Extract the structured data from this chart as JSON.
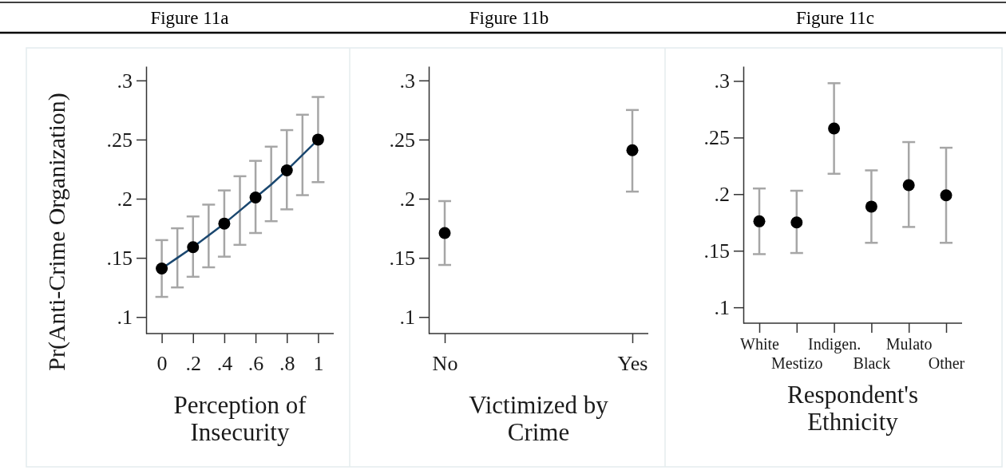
{
  "chart_data": [
    {
      "type": "line",
      "title": "Figure 11a",
      "ylabel": "Pr(Anti-Crime Organization)",
      "xlabel": "Perception of Insecurity",
      "xlim": [
        -0.1,
        1.1
      ],
      "xticks": [
        0,
        {
          "value": 0.2,
          "label": ".2"
        },
        {
          "value": 0.4,
          "label": ".4"
        },
        {
          "value": 0.6,
          "label": ".6"
        },
        {
          "value": 0.8,
          "label": ".8"
        },
        1
      ],
      "ylim": [
        0.086,
        0.312
      ],
      "yticks": [
        {
          "value": 0.1,
          "label": ".1"
        },
        {
          "value": 0.15,
          "label": ".15"
        },
        {
          "value": 0.2,
          "label": ".2"
        },
        {
          "value": 0.25,
          "label": ".25"
        },
        {
          "value": 0.3,
          "label": ".3"
        }
      ],
      "grid": false,
      "series": [
        {
          "type": "line",
          "color": "#1a476f",
          "marker": "none",
          "x": [
            0,
            0.1,
            0.2,
            0.3,
            0.4,
            0.5,
            0.6,
            0.7,
            0.8,
            0.9,
            1
          ],
          "values": [
            0.141,
            0.15,
            0.159,
            0.169,
            0.179,
            0.19,
            0.201,
            0.212,
            0.224,
            0.237,
            0.25
          ],
          "errors": [
            [
              0.117,
              0.165
            ],
            [
              0.125,
              0.175
            ],
            [
              0.134,
              0.185
            ],
            [
              0.142,
              0.195
            ],
            [
              0.151,
              0.207
            ],
            [
              0.161,
              0.219
            ],
            [
              0.171,
              0.232
            ],
            [
              0.181,
              0.244
            ],
            [
              0.191,
              0.258
            ],
            [
              0.203,
              0.271
            ],
            [
              0.214,
              0.286
            ]
          ]
        },
        {
          "type": "scatter",
          "color": "#000000",
          "marker": "circle",
          "x": [
            0,
            0.2,
            0.4,
            0.6,
            0.8,
            1
          ],
          "values": [
            0.141,
            0.159,
            0.179,
            0.201,
            0.224,
            0.25
          ]
        }
      ]
    },
    {
      "type": "scatter",
      "title": "Figure 11b",
      "xlabel": "Victimized by Crime",
      "categories": [
        "No",
        "Yes"
      ],
      "ylim": [
        0.086,
        0.312
      ],
      "yticks": [
        {
          "value": 0.1,
          "label": ".1"
        },
        {
          "value": 0.15,
          "label": ".15"
        },
        {
          "value": 0.2,
          "label": ".2"
        },
        {
          "value": 0.25,
          "label": ".25"
        },
        {
          "value": 0.3,
          "label": ".3"
        }
      ],
      "grid": false,
      "marker": "circle",
      "series": [
        {
          "color": "#000000",
          "values": [
            0.171,
            0.241
          ],
          "errors": [
            [
              0.144,
              0.198
            ],
            [
              0.206,
              0.275
            ]
          ]
        }
      ]
    },
    {
      "type": "scatter",
      "title": "Figure 11c",
      "xlabel": "Respondent's Ethnicity",
      "categories": [
        "White",
        "Mestizo",
        "Indigen.",
        "Black",
        "Mulato",
        "Other"
      ],
      "ylim": [
        0.086,
        0.313
      ],
      "yticks": [
        {
          "value": 0.1,
          "label": ".1"
        },
        {
          "value": 0.15,
          "label": ".15"
        },
        {
          "value": 0.2,
          "label": ".2"
        },
        {
          "value": 0.25,
          "label": ".25"
        },
        {
          "value": 0.3,
          "label": ".3"
        }
      ],
      "grid": false,
      "marker": "circle",
      "series": [
        {
          "color": "#000000",
          "values": [
            0.176,
            0.175,
            0.258,
            0.189,
            0.208,
            0.199
          ],
          "errors": [
            [
              0.147,
              0.205
            ],
            [
              0.148,
              0.203
            ],
            [
              0.218,
              0.298
            ],
            [
              0.157,
              0.221
            ],
            [
              0.171,
              0.246
            ],
            [
              0.157,
              0.241
            ]
          ]
        }
      ]
    }
  ]
}
